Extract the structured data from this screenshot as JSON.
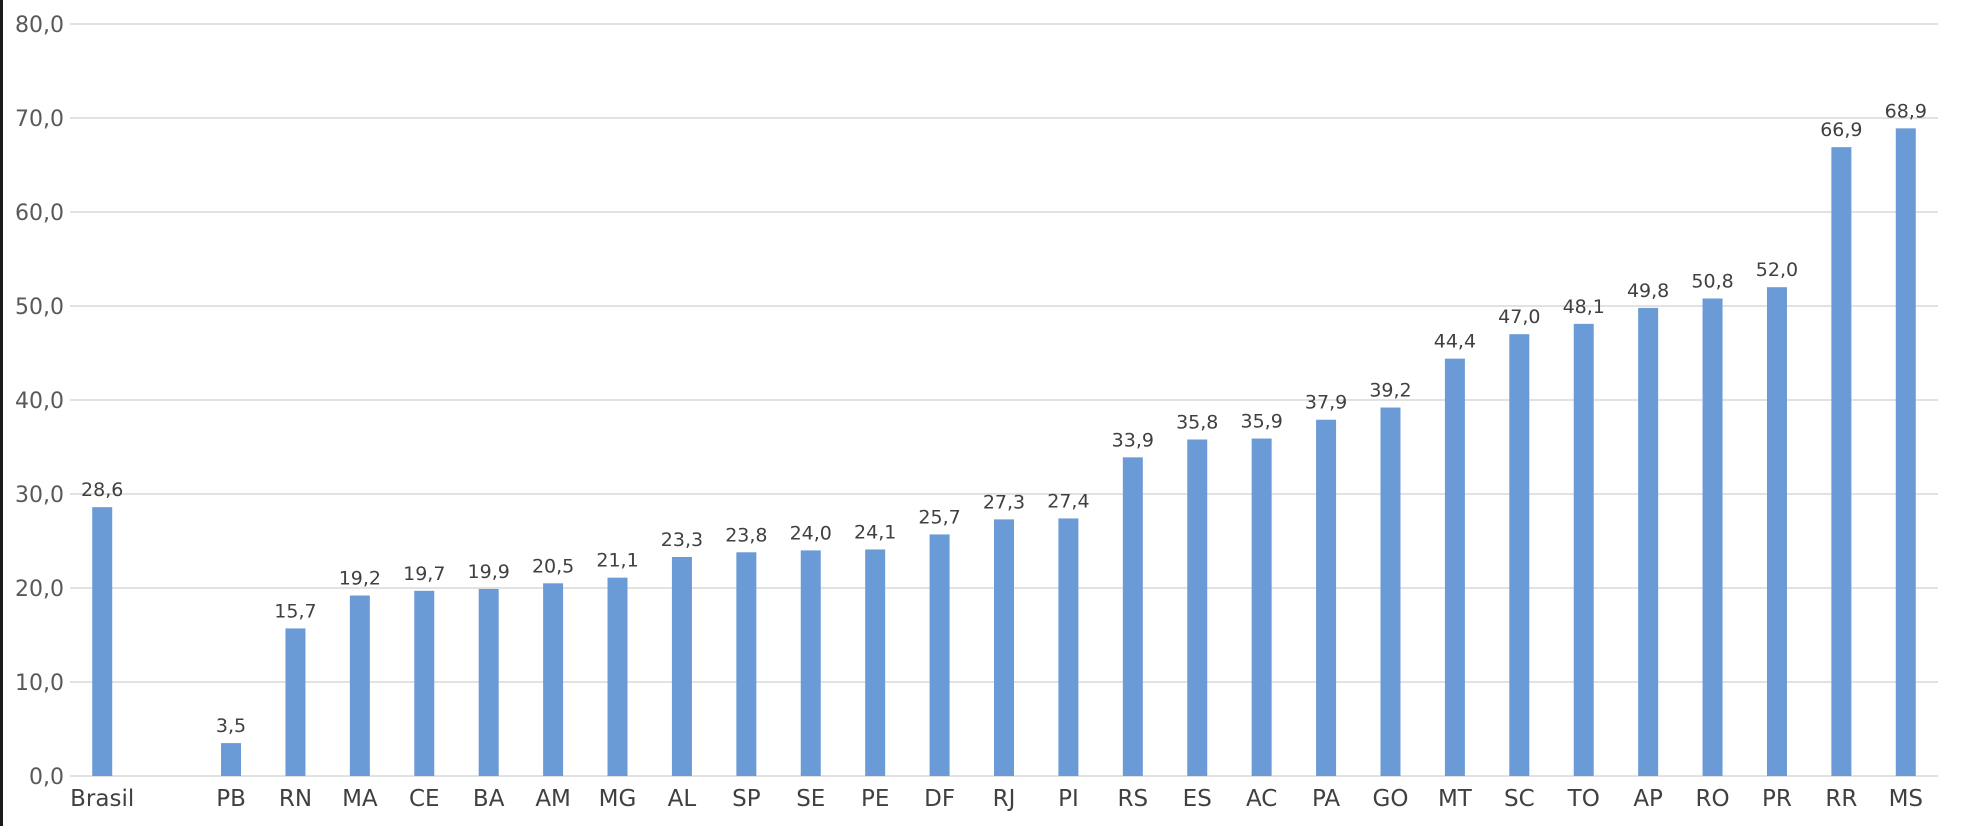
{
  "chart_data": {
    "type": "bar",
    "title": "",
    "xlabel": "",
    "ylabel": "",
    "ylim": [
      0,
      80
    ],
    "yticks": [
      "0,0",
      "10,0",
      "20,0",
      "30,0",
      "40,0",
      "50,0",
      "60,0",
      "70,0",
      "80,0"
    ],
    "grid": true,
    "legend": "none",
    "bar_color": "#6b9bd6",
    "categories": [
      "Brasil",
      "",
      "PB",
      "RN",
      "MA",
      "CE",
      "BA",
      "AM",
      "MG",
      "AL",
      "SP",
      "SE",
      "PE",
      "DF",
      "RJ",
      "PI",
      "RS",
      "ES",
      "AC",
      "PA",
      "GO",
      "MT",
      "SC",
      "TO",
      "AP",
      "RO",
      "PR",
      "RR",
      "MS"
    ],
    "values": [
      28.6,
      null,
      3.5,
      15.7,
      19.2,
      19.7,
      19.9,
      20.5,
      21.1,
      23.3,
      23.8,
      24.0,
      24.1,
      25.7,
      27.3,
      27.4,
      33.9,
      35.8,
      35.9,
      37.9,
      39.2,
      44.4,
      47.0,
      48.1,
      49.8,
      50.8,
      52.0,
      66.9,
      68.9
    ],
    "value_labels": [
      "28,6",
      "",
      "3,5",
      "15,7",
      "19,2",
      "19,7",
      "19,9",
      "20,5",
      "21,1",
      "23,3",
      "23,8",
      "24,0",
      "24,1",
      "25,7",
      "27,3",
      "27,4",
      "33,9",
      "35,8",
      "35,9",
      "37,9",
      "39,2",
      "44,4",
      "47,0",
      "48,1",
      "49,8",
      "50,8",
      "52,0",
      "66,9",
      "68,9"
    ]
  }
}
